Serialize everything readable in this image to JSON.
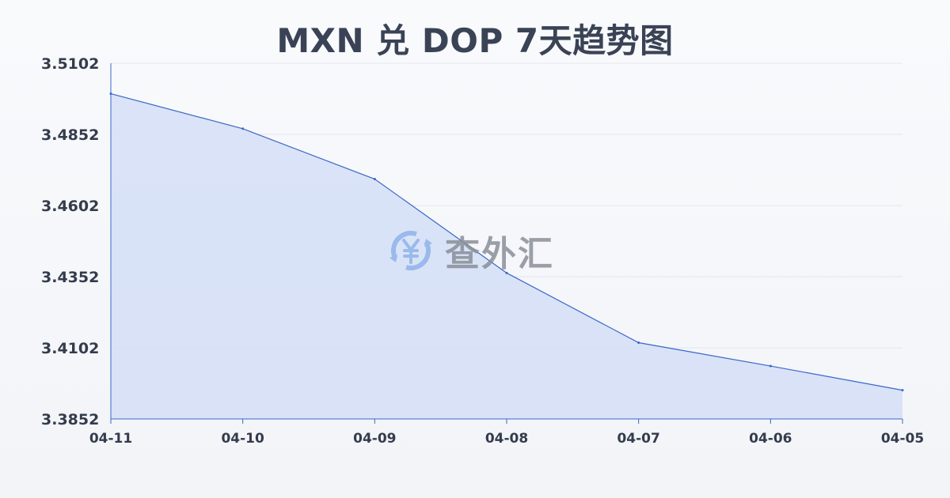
{
  "chart_data": {
    "type": "area",
    "title": "MXN 兑 DOP 7天趋势图",
    "xlabel": "",
    "ylabel": "",
    "categories": [
      "04-11",
      "04-10",
      "04-09",
      "04-08",
      "04-07",
      "04-06",
      "04-05"
    ],
    "series": [
      {
        "values": [
          3.4995,
          3.4872,
          3.4695,
          3.4365,
          3.412,
          3.4038,
          3.3953
        ]
      }
    ],
    "y_ticks": [
      "3.5102",
      "3.4852",
      "3.4602",
      "3.4352",
      "3.4102",
      "3.3852"
    ],
    "ylim": [
      3.3852,
      3.5102
    ],
    "grid": true,
    "legend": "none",
    "colors": {
      "line": "#3a67c8",
      "fill": "#d6e0f6",
      "grid": "#e3e6ec",
      "axis": "#3a67c8",
      "text": "#343c4c"
    }
  },
  "watermark": {
    "text": "查外汇",
    "icon": "yen-exchange-icon"
  }
}
